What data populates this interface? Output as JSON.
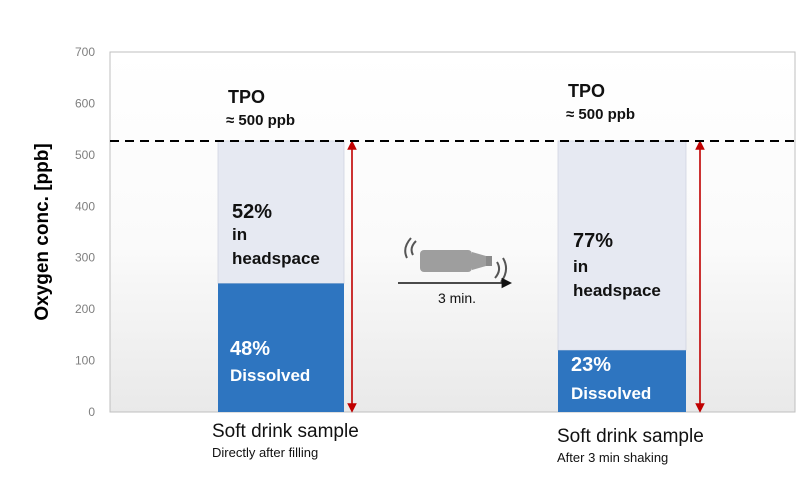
{
  "chart_data": {
    "type": "bar",
    "ylabel": "Oxygen conc. [ppb]",
    "ylim": [
      0,
      700
    ],
    "yticks": [
      0,
      100,
      200,
      300,
      400,
      500,
      600,
      700
    ],
    "reference_line": 527,
    "bars": [
      {
        "total": 527,
        "dissolved": 250,
        "tpo_title": "TPO",
        "tpo_value": "≈ 500 ppb",
        "headspace_pct": "52%",
        "headspace_l1": "in",
        "headspace_l2": "headspace",
        "dissolved_pct": "48%",
        "dissolved_label": "Dissolved",
        "category": "Soft drink sample",
        "subcategory": "Directly after filling"
      },
      {
        "total": 527,
        "dissolved": 120,
        "tpo_title": "TPO",
        "tpo_value": "≈ 500 ppb",
        "headspace_pct": "77%",
        "headspace_l1": "in",
        "headspace_l2": "headspace",
        "dissolved_pct": "23%",
        "dissolved_label": "Dissolved",
        "category": "Soft drink sample",
        "subcategory": "After 3 min shaking"
      }
    ],
    "transition_label": "3 min.",
    "colors": {
      "headspace": "#e6e9f2",
      "dissolved": "#2e75c0",
      "arrow": "#c00000",
      "plot_top": "#ffffff",
      "plot_bottom": "#ececec"
    }
  },
  "icons": {
    "transition": "shaking-bottle-icon"
  }
}
